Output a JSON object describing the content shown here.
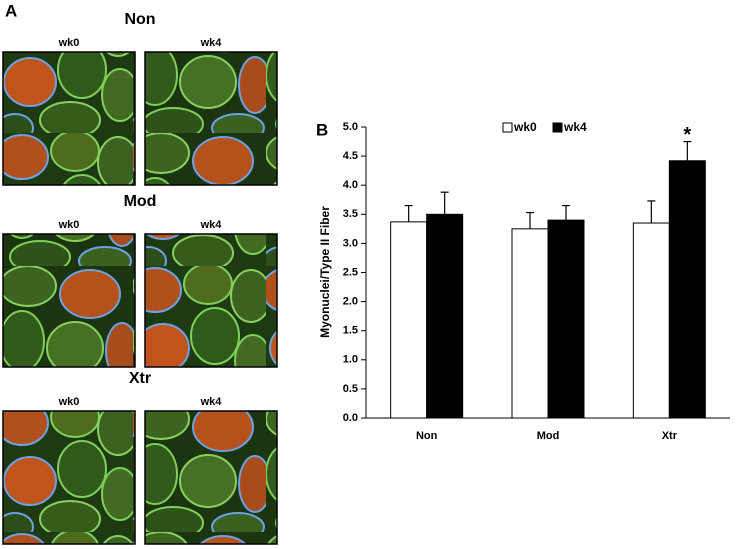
{
  "panel_a": {
    "label": "A",
    "groups": [
      {
        "title": "Non",
        "images": [
          "wk0",
          "wk4"
        ]
      },
      {
        "title": "Mod",
        "images": [
          "wk0",
          "wk4"
        ]
      },
      {
        "title": "Xtr",
        "images": [
          "wk0",
          "wk4"
        ]
      }
    ]
  },
  "chart_data": {
    "type": "bar",
    "panel_label": "B",
    "y_label": "Myonuclei/Type II Fiber",
    "categories": [
      "Non",
      "Mod",
      "Xtr"
    ],
    "series": [
      {
        "name": "wk0",
        "color": "#ffffff",
        "values": [
          3.37,
          3.25,
          3.35
        ],
        "errors": [
          0.28,
          0.28,
          0.38
        ]
      },
      {
        "name": "wk4",
        "color": "#000000",
        "values": [
          3.5,
          3.4,
          4.42
        ],
        "errors": [
          0.38,
          0.25,
          0.33
        ]
      }
    ],
    "annotations": [
      {
        "text": "*",
        "series": 1,
        "category": 2
      }
    ],
    "ylim": [
      0,
      5
    ],
    "yticks": [
      {
        "value": 0,
        "label": "0.0"
      },
      {
        "value": 0.5,
        "label": "0.5"
      },
      {
        "value": 1,
        "label": "1.0"
      },
      {
        "value": 1.5,
        "label": "1.5"
      },
      {
        "value": 2,
        "label": "2.0"
      },
      {
        "value": 2.5,
        "label": "2.5"
      },
      {
        "value": 3,
        "label": "3.0"
      },
      {
        "value": 3.5,
        "label": "3.5"
      },
      {
        "value": 4,
        "label": "4.0"
      },
      {
        "value": 4.5,
        "label": "4.5"
      },
      {
        "value": 5,
        "label": "5.0"
      }
    ],
    "legend": "top"
  }
}
